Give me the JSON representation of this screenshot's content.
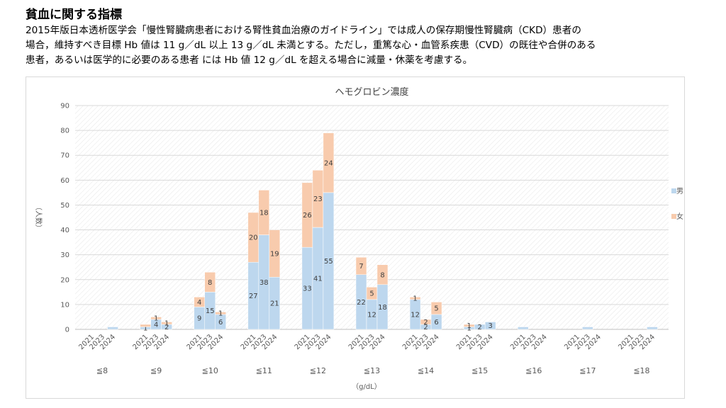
{
  "header": {
    "title": "貧血に関する指標",
    "description_lines": [
      "2015年版日本透析医学会「慢性腎臓病患者における腎性貧血治療のガイドライン」では成人の保存期慢性腎臓病（CKD）患者の",
      "場合，維持すべき目標 Hb 値は 11 g／dL 以上 13 g／dL 未満とする。ただし，重篤な心・血管系疾患（CVD）の既往や合併のある",
      "患者，あるいは医学的に必要のある患者 には Hb 値 12 g／dL を超える場合に減量・休薬を考慮する。"
    ]
  },
  "chart_data": {
    "type": "bar",
    "stacked": true,
    "title": "ヘモグロビン濃度",
    "ylabel": "（人数）",
    "xlabel": "（g/dL）",
    "ylim": [
      0,
      90
    ],
    "yticks": [
      0,
      10,
      20,
      30,
      40,
      50,
      60,
      70,
      80,
      90
    ],
    "grid": true,
    "legend_position": "right",
    "years": [
      "2021",
      "2023",
      "2024"
    ],
    "groups": [
      "≦8",
      "≦9",
      "≦10",
      "≦11",
      "≦12",
      "≦13",
      "≦14",
      "≦15",
      "≦16",
      "≦17",
      "≦18"
    ],
    "series": [
      {
        "name": "男",
        "color": "#bdd7ee",
        "values": [
          0,
          0,
          1,
          1,
          4,
          2,
          9,
          15,
          6,
          27,
          38,
          21,
          33,
          41,
          55,
          22,
          12,
          18,
          12,
          2,
          6,
          1,
          2,
          3,
          1,
          0,
          0,
          0,
          1,
          0,
          0,
          0,
          1
        ],
        "labels": [
          "",
          "",
          "",
          "1",
          "4",
          "2",
          "9",
          "15",
          "6",
          "27",
          "38",
          "21",
          "33",
          "41",
          "55",
          "22",
          "12",
          "18",
          "12",
          "2",
          "6",
          "1",
          "2",
          "3",
          "",
          "",
          "",
          "",
          "",
          "",
          "",
          "",
          ""
        ]
      },
      {
        "name": "女",
        "color": "#f8cbad",
        "values": [
          0,
          0,
          0,
          1,
          1,
          1,
          4,
          8,
          1,
          20,
          18,
          19,
          26,
          23,
          24,
          7,
          5,
          8,
          1,
          2,
          5,
          1,
          0,
          0,
          0,
          0,
          0,
          0,
          0,
          0,
          0,
          0,
          0
        ],
        "labels": [
          "",
          "",
          "",
          "",
          "1",
          "1",
          "4",
          "8",
          "1",
          "20",
          "18",
          "19",
          "26",
          "23",
          "24",
          "7",
          "5",
          "8",
          "1",
          "2",
          "5",
          "1",
          "",
          "",
          "",
          "",
          "",
          "",
          "",
          "",
          "",
          "",
          ""
        ]
      }
    ]
  }
}
